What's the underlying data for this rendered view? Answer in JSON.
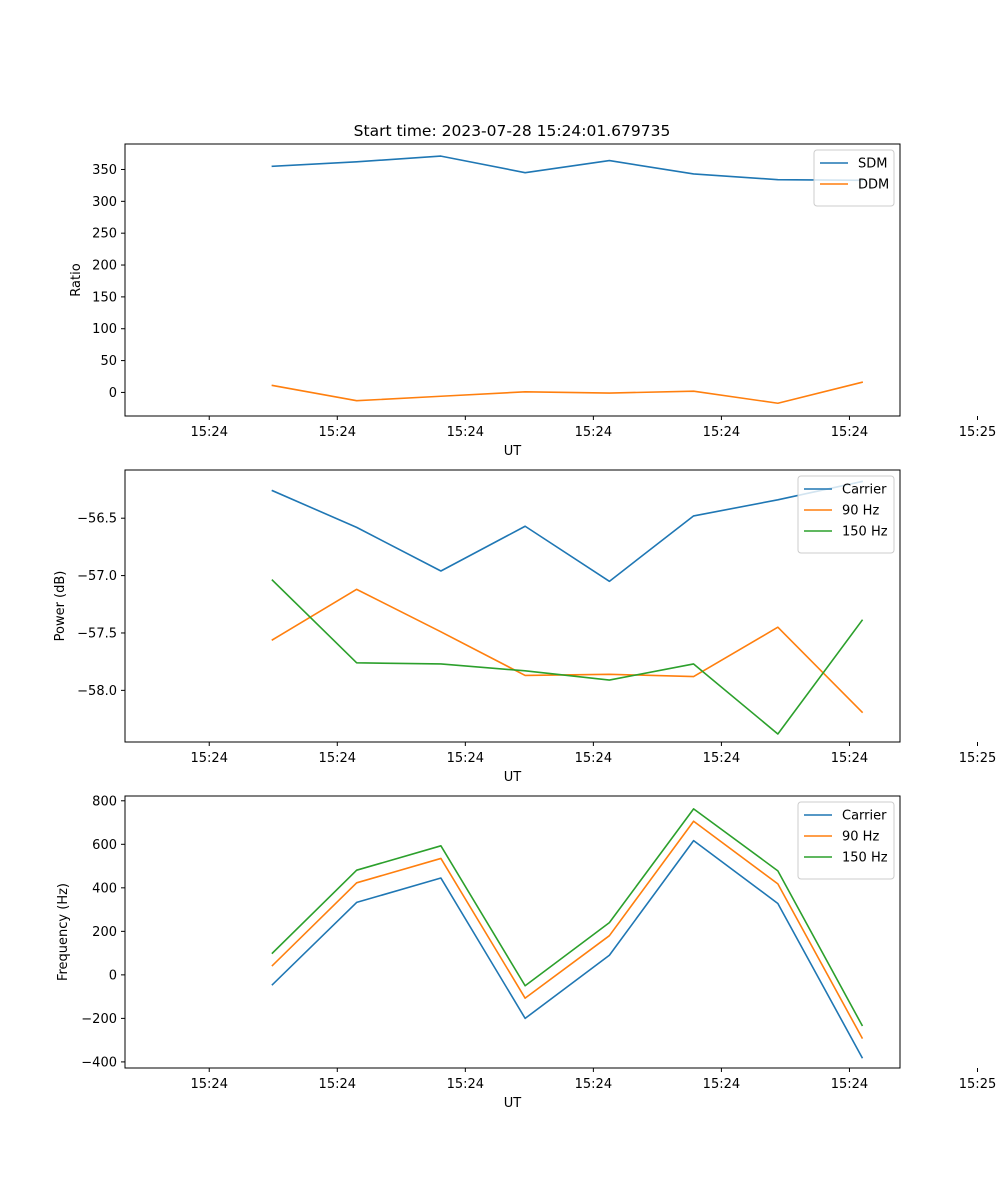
{
  "figure_title": "Start time: 2023-07-28 15:24:01.679735",
  "chart_data": [
    {
      "type": "line",
      "title": "Start time: 2023-07-28 15:24:01.679735",
      "xlabel": "UT",
      "ylabel": "Ratio",
      "xlim": [
        -1,
        8.2
      ],
      "ylim": [
        -37,
        390
      ],
      "x": [
        0.75,
        1.75,
        2.75,
        3.75,
        4.75,
        5.75,
        6.75,
        7.75
      ],
      "x_ticks": [
        0,
        1.52,
        3.04,
        4.56,
        6.08,
        7.6,
        9.12
      ],
      "x_tick_labels": [
        "15:24",
        "15:24",
        "15:24",
        "15:24",
        "15:24",
        "15:24",
        "15:25"
      ],
      "y_ticks": [
        0,
        50,
        100,
        150,
        200,
        250,
        300,
        350
      ],
      "y_tick_labels": [
        "0",
        "50",
        "100",
        "150",
        "200",
        "250",
        "300",
        "350"
      ],
      "legend_position": "top-right",
      "series": [
        {
          "name": "SDM",
          "color": "#1f77b4",
          "values": [
            355,
            362,
            371,
            345,
            364,
            343,
            334,
            333
          ]
        },
        {
          "name": "DDM",
          "color": "#ff7f0e",
          "values": [
            11,
            -13,
            -6,
            1,
            -1,
            2,
            -17,
            16
          ]
        }
      ]
    },
    {
      "type": "line",
      "xlabel": "UT",
      "ylabel": "Power (dB)",
      "xlim": [
        -1,
        8.2
      ],
      "ylim": [
        -58.45,
        -56.08
      ],
      "x": [
        0.75,
        1.75,
        2.75,
        3.75,
        4.75,
        5.75,
        6.75,
        7.75
      ],
      "x_ticks": [
        0,
        1.52,
        3.04,
        4.56,
        6.08,
        7.6,
        9.12
      ],
      "x_tick_labels": [
        "15:24",
        "15:24",
        "15:24",
        "15:24",
        "15:24",
        "15:24",
        "15:25"
      ],
      "y_ticks": [
        -58.0,
        -57.5,
        -57.0,
        -56.5
      ],
      "y_tick_labels": [
        "−58.0",
        "−57.5",
        "−57.0",
        "−56.5"
      ],
      "legend_position": "top-right",
      "series": [
        {
          "name": "Carrier",
          "color": "#1f77b4",
          "values": [
            -56.26,
            -56.58,
            -56.96,
            -56.57,
            -57.05,
            -56.48,
            -56.34,
            -56.18
          ]
        },
        {
          "name": "90 Hz",
          "color": "#ff7f0e",
          "values": [
            -57.56,
            -57.12,
            -57.49,
            -57.87,
            -57.86,
            -57.88,
            -57.45,
            -58.19
          ]
        },
        {
          "name": "150 Hz",
          "color": "#2ca02c",
          "values": [
            -57.04,
            -57.76,
            -57.77,
            -57.83,
            -57.91,
            -57.77,
            -58.38,
            -57.39
          ]
        }
      ]
    },
    {
      "type": "line",
      "xlabel": "UT",
      "ylabel": "Frequency (Hz)",
      "xlim": [
        -1,
        8.2
      ],
      "ylim": [
        -428,
        822
      ],
      "x": [
        0.75,
        1.75,
        2.75,
        3.75,
        4.75,
        5.75,
        6.75,
        7.75
      ],
      "x_ticks": [
        0,
        1.52,
        3.04,
        4.56,
        6.08,
        7.6,
        9.12
      ],
      "x_tick_labels": [
        "15:24",
        "15:24",
        "15:24",
        "15:24",
        "15:24",
        "15:24",
        "15:25"
      ],
      "y_ticks": [
        -400,
        -200,
        0,
        200,
        400,
        600,
        800
      ],
      "y_tick_labels": [
        "−400",
        "−200",
        "0",
        "200",
        "400",
        "600",
        "800"
      ],
      "legend_position": "top-right",
      "series": [
        {
          "name": "Carrier",
          "color": "#1f77b4",
          "values": [
            -45,
            333,
            445,
            -200,
            90,
            617,
            328,
            -380
          ]
        },
        {
          "name": "90 Hz",
          "color": "#ff7f0e",
          "values": [
            43,
            423,
            535,
            -107,
            180,
            706,
            418,
            -290
          ]
        },
        {
          "name": "150 Hz",
          "color": "#2ca02c",
          "values": [
            100,
            481,
            593,
            -50,
            240,
            763,
            478,
            -232
          ]
        }
      ]
    }
  ]
}
